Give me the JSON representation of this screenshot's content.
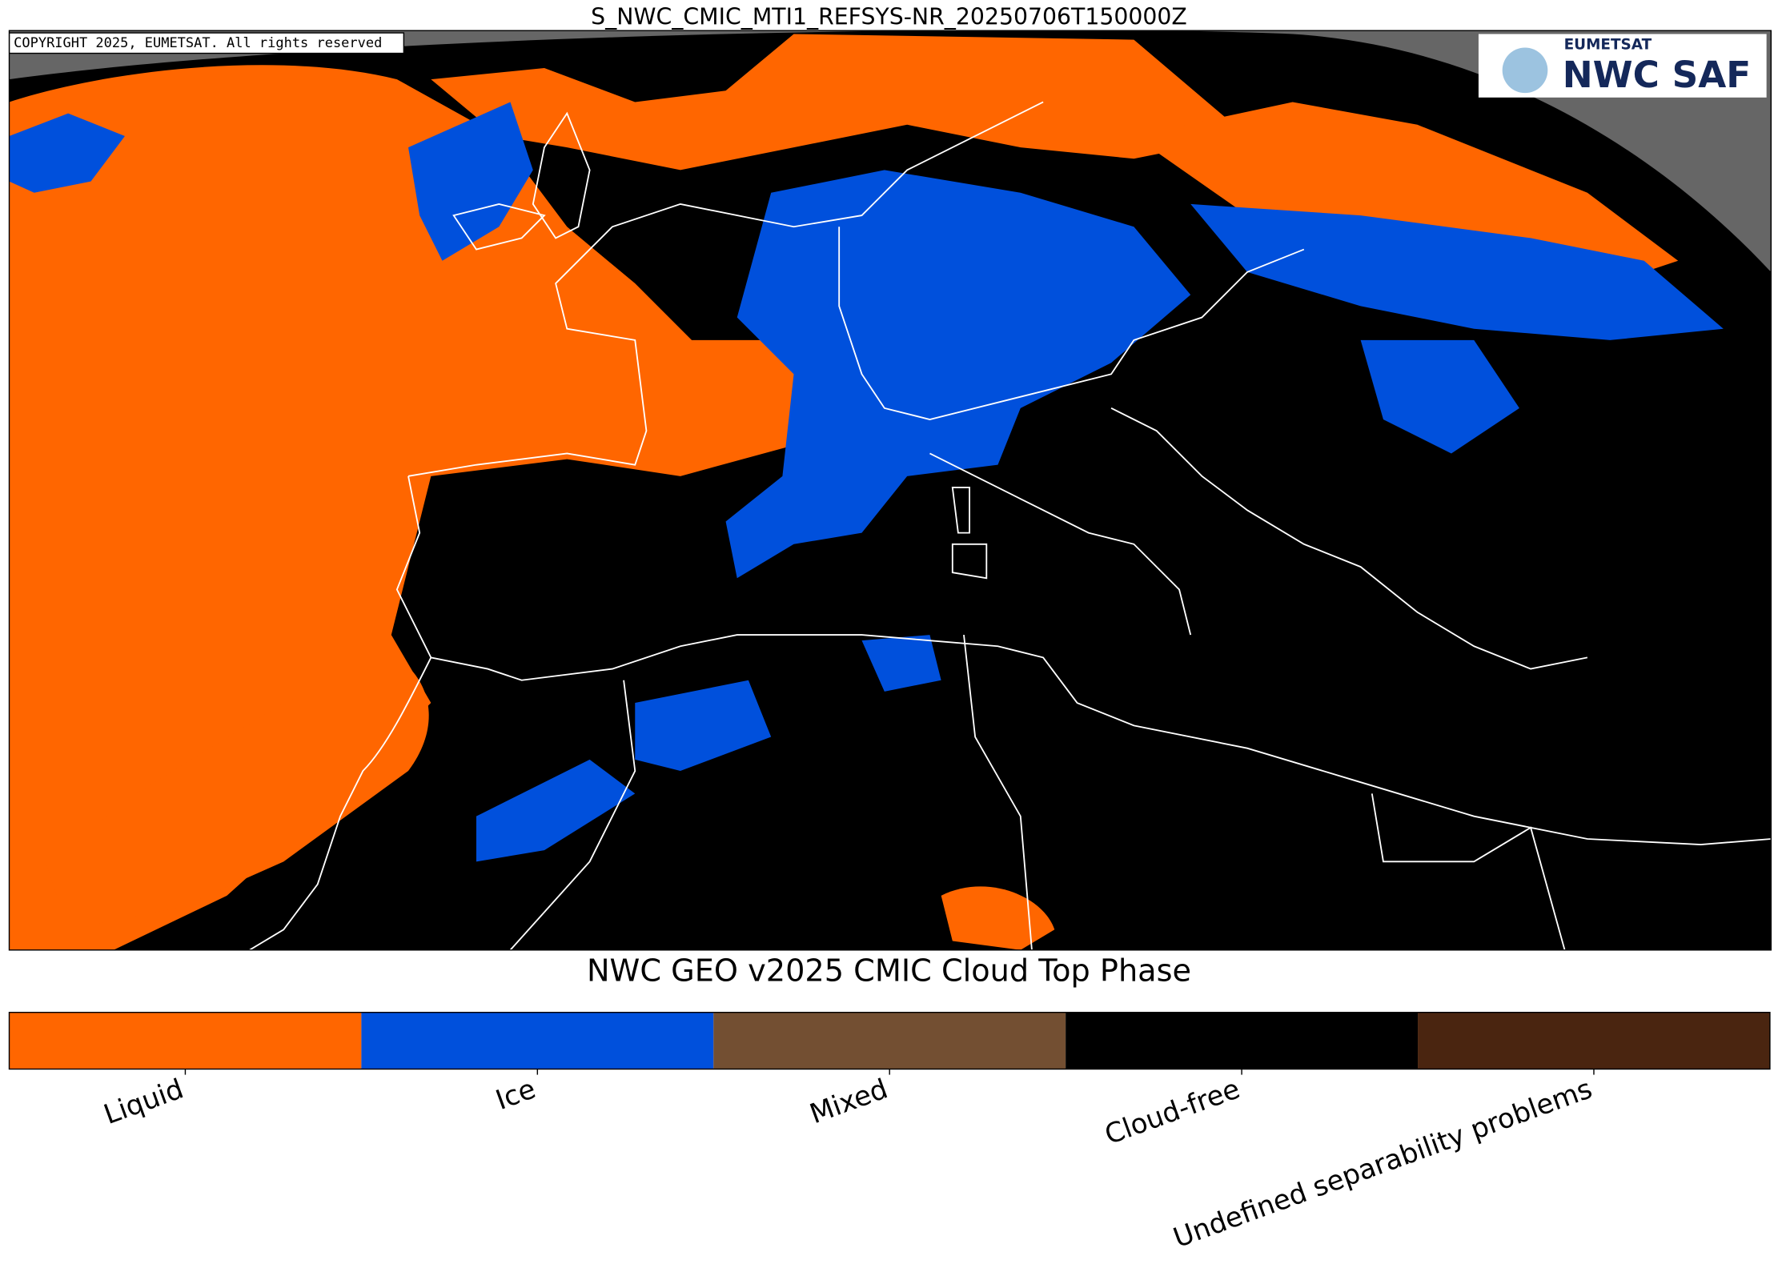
{
  "header": {
    "title": "S_NWC_CMIC_MTI1_REFSYS-NR_20250706T150000Z"
  },
  "map": {
    "copyright": "COPYRIGHT 2025, EUMETSAT. All rights reserved"
  },
  "logo": {
    "top": "EUMETSAT",
    "main": "NWC SAF"
  },
  "colorbar": {
    "title": "NWC GEO v2025 CMIC Cloud Top Phase",
    "items": [
      {
        "label": "Liquid",
        "color": "#ff6600"
      },
      {
        "label": "Ice",
        "color": "#0050dc"
      },
      {
        "label": "Mixed",
        "color": "#734f32"
      },
      {
        "label": "Cloud-free",
        "color": "#000000"
      },
      {
        "label": "Undefined separability problems",
        "color": "#4a2510"
      }
    ]
  }
}
